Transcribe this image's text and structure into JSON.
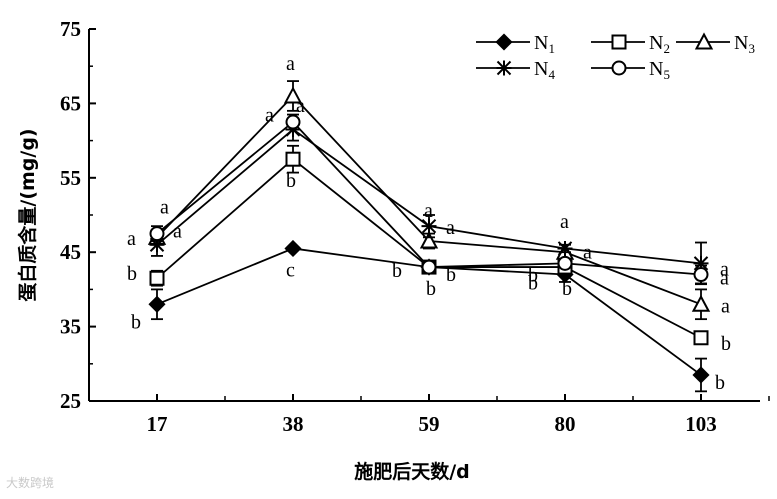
{
  "chart_data": {
    "type": "line",
    "xlabel": "施肥后天数/d",
    "ylabel": "蛋白质含量/(mg/g)",
    "categories": [
      "17",
      "38",
      "59",
      "80",
      "103"
    ],
    "yticks": [
      "25",
      "35",
      "45",
      "55",
      "65",
      "75"
    ],
    "ylim": [
      25,
      75
    ],
    "grid": false,
    "legend_position": "top-right",
    "series": [
      {
        "name": "N",
        "sub": "1",
        "marker": "diamond-filled",
        "values": [
          38,
          45.5,
          43,
          42,
          28.5
        ],
        "errors": [
          2,
          0.3,
          0.5,
          1,
          2.2
        ],
        "labels": [
          "b",
          "c",
          "b",
          "b",
          "b"
        ]
      },
      {
        "name": "N",
        "sub": "2",
        "marker": "square-open",
        "values": [
          41.5,
          57.5,
          43,
          43,
          33.5
        ],
        "errors": [
          1,
          1.8,
          0.8,
          1,
          0.8
        ],
        "labels": [
          "b",
          "b",
          "b",
          "b",
          "b"
        ]
      },
      {
        "name": "N",
        "sub": "3",
        "marker": "triangle-open",
        "values": [
          47,
          66,
          46.5,
          45,
          38
        ],
        "errors": [
          1,
          2,
          1,
          0.5,
          2
        ],
        "labels": [
          "a",
          "a",
          "a",
          "a",
          "a"
        ]
      },
      {
        "name": "N",
        "sub": "4",
        "marker": "star",
        "values": [
          46,
          61.5,
          48.5,
          45.5,
          43.5
        ],
        "errors": [
          1.5,
          1.5,
          1.5,
          0.5,
          2.8
        ],
        "labels": [
          "a",
          "a",
          "a",
          "a",
          "a"
        ]
      },
      {
        "name": "N",
        "sub": "5",
        "marker": "circle-open",
        "values": [
          47.5,
          62.5,
          43,
          43.5,
          42
        ],
        "errors": [
          1,
          1,
          0.8,
          0.5,
          1.2
        ],
        "labels": [
          "a",
          "a",
          "b",
          "b",
          "a"
        ]
      }
    ]
  },
  "watermark": "大数跨境"
}
